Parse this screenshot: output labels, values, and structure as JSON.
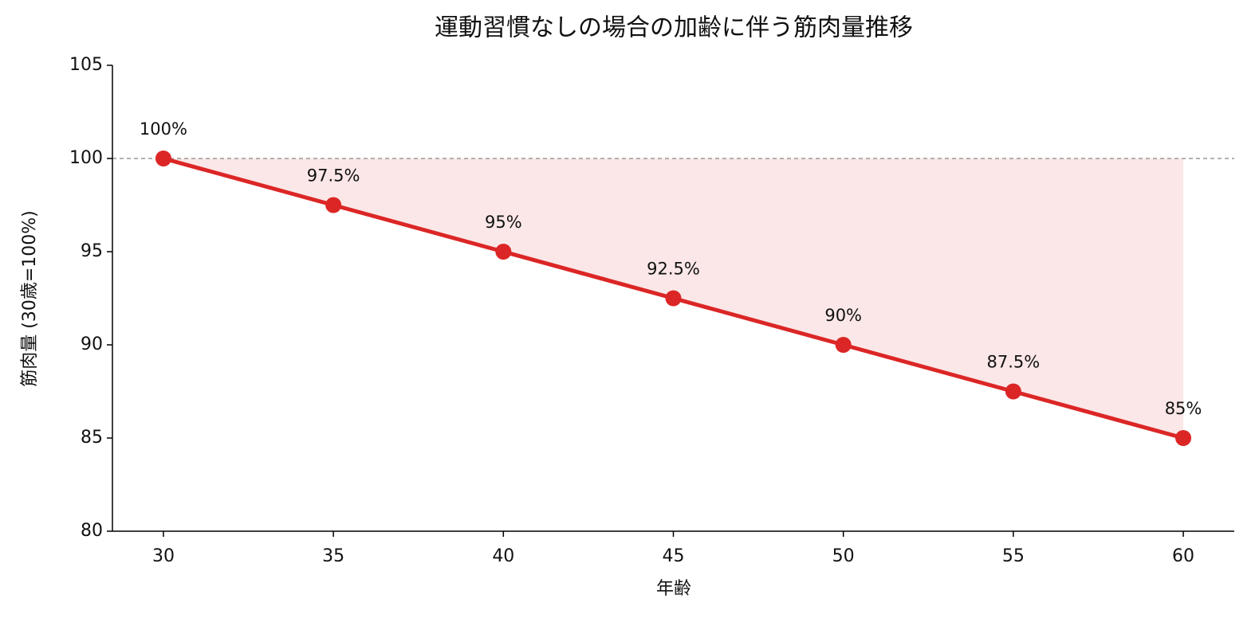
{
  "chart_data": {
    "type": "line",
    "title": "運動習慣なしの場合の加齢に伴う筋肉量推移",
    "x_label": "年齢",
    "y_label": "筋肉量 (30歳=100%)",
    "x": [
      30,
      35,
      40,
      45,
      50,
      55,
      60
    ],
    "series": [
      {
        "color": "#dc2626",
        "values": [
          100,
          97.5,
          95,
          92.5,
          90,
          87.5,
          85
        ],
        "value_labels": [
          "100%",
          "97.5%",
          "95%",
          "92.5%",
          "90%",
          "87.5%",
          "85%"
        ]
      }
    ],
    "reference_line": 100,
    "fill_color": "#fbe7e7",
    "xlim": [
      28.5,
      61.5
    ],
    "xticks": [
      30,
      35,
      40,
      45,
      50,
      55,
      60
    ],
    "ylim": [
      80,
      105
    ],
    "yticks": [
      80,
      85,
      90,
      95,
      100,
      105
    ],
    "grid": false
  }
}
